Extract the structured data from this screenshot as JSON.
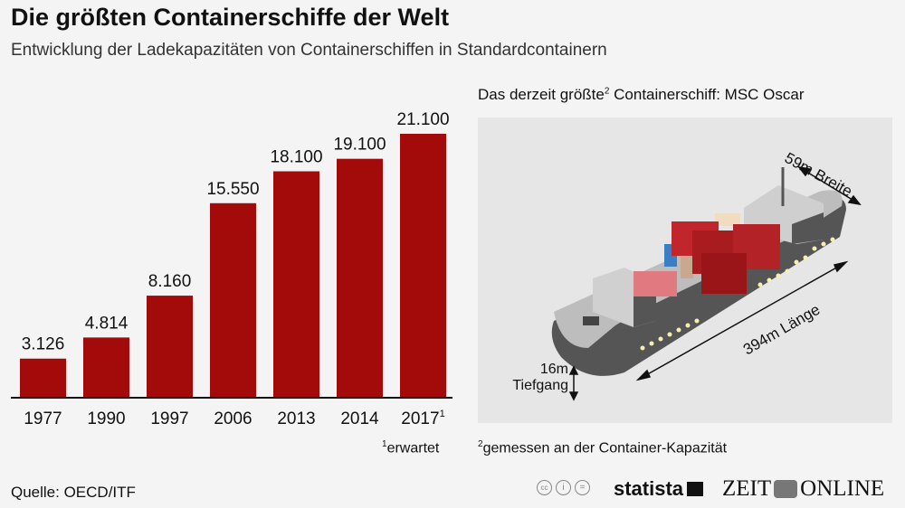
{
  "title": "Die größten Containerschiffe der Welt",
  "subtitle": "Entwicklung der Ladekapazitäten von Containerschiffen in Standardcontainern",
  "chart_data": {
    "type": "bar",
    "categories": [
      "1977",
      "1990",
      "1997",
      "2006",
      "2013",
      "2014",
      "2017"
    ],
    "category_footnotes": [
      "",
      "",
      "",
      "",
      "",
      "",
      "1"
    ],
    "values": [
      3126,
      4814,
      8160,
      15550,
      18100,
      19100,
      21100
    ],
    "value_labels": [
      "3.126",
      "4.814",
      "8.160",
      "15.550",
      "18.100",
      "19.100",
      "21.100"
    ],
    "ylim": [
      0,
      21100
    ],
    "grid": false,
    "bar_color": "#a30a0a"
  },
  "footnote1": {
    "mark": "1",
    "text": "erwartet"
  },
  "ship": {
    "title": "Das derzeit größte",
    "title_mark": "2",
    "title_rest": " Containerschiff: MSC Oscar",
    "width_label": "59m Breite",
    "length_label": "394m Länge",
    "draft_value": "16m",
    "draft_label": "Tiefgang"
  },
  "footnote2": {
    "mark": "2",
    "text": "gemessen an der Container-Kapazität"
  },
  "source": "Quelle: OECD/ITF",
  "logos": {
    "statista": "statista",
    "zeit_left": "ZEIT",
    "zeit_right": "ONLINE",
    "license_icons": [
      "cc-icon",
      "by-icon",
      "nd-icon"
    ]
  }
}
